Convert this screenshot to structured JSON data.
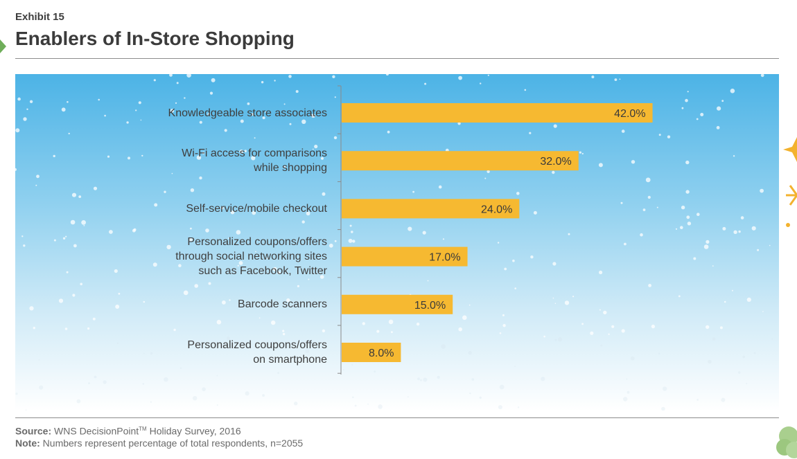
{
  "header": {
    "exhibit": "Exhibit 15",
    "title": "Enablers of In-Store Shopping"
  },
  "chart_data": {
    "type": "bar",
    "orientation": "horizontal",
    "title": "Enablers of In-Store Shopping",
    "categories": [
      "Knowledgeable store associates",
      "Wi-Fi access for comparisons\nwhile shopping",
      "Self-service/mobile checkout",
      "Personalized coupons/offers\nthrough social networking sites\nsuch as Facebook, Twitter",
      "Barcode scanners",
      "Personalized coupons/offers\non smartphone"
    ],
    "values": [
      42.0,
      32.0,
      24.0,
      17.0,
      15.0,
      8.0
    ],
    "value_labels": [
      "42.0%",
      "32.0%",
      "24.0%",
      "17.0%",
      "15.0%",
      "8.0%"
    ],
    "xlim": [
      0,
      50
    ],
    "bar_color": "#f6b931",
    "grid": false
  },
  "footer": {
    "source_label": "Source:",
    "source_text": " WNS DecisionPoint",
    "source_tm": "TM",
    "source_tail": " Holiday Survey, 2016",
    "note_label": "Note:",
    "note_text": " Numbers represent percentage of total respondents, n=2055"
  }
}
